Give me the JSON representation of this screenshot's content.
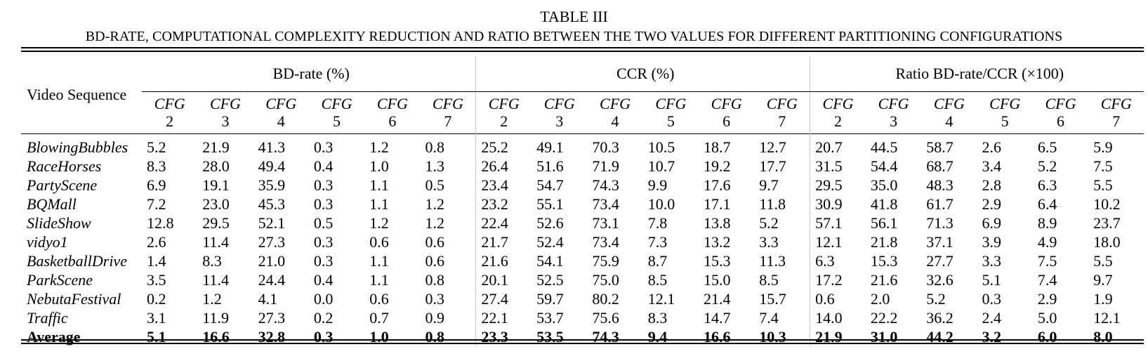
{
  "caption": {
    "label": "TABLE III",
    "title": "BD-RATE, COMPUTATIONAL COMPLEXITY REDUCTION AND RATIO BETWEEN THE TWO VALUES FOR DIFFERENT PARTITIONING CONFIGURATIONS"
  },
  "header": {
    "video_sequence": "Video Sequence",
    "groups": [
      "BD-rate (%)",
      "CCR (%)",
      "Ratio BD-rate/CCR (×100)"
    ],
    "cfg_prefix": "CFG",
    "cfg_numbers": [
      "2",
      "3",
      "4",
      "5",
      "6",
      "7"
    ]
  },
  "rows": [
    {
      "name": "BlowingBubbles",
      "values": [
        "5.2",
        "21.9",
        "41.3",
        "0.3",
        "1.2",
        "0.8",
        "25.2",
        "49.1",
        "70.3",
        "10.5",
        "18.7",
        "12.7",
        "20.7",
        "44.5",
        "58.7",
        "2.6",
        "6.5",
        "5.9"
      ]
    },
    {
      "name": "RaceHorses",
      "values": [
        "8.3",
        "28.0",
        "49.4",
        "0.4",
        "1.0",
        "1.3",
        "26.4",
        "51.6",
        "71.9",
        "10.7",
        "19.2",
        "17.7",
        "31.5",
        "54.4",
        "68.7",
        "3.4",
        "5.2",
        "7.5"
      ]
    },
    {
      "name": "PartyScene",
      "values": [
        "6.9",
        "19.1",
        "35.9",
        "0.3",
        "1.1",
        "0.5",
        "23.4",
        "54.7",
        "74.3",
        "9.9",
        "17.6",
        "9.7",
        "29.5",
        "35.0",
        "48.3",
        "2.8",
        "6.3",
        "5.5"
      ]
    },
    {
      "name": "BQMall",
      "values": [
        "7.2",
        "23.0",
        "45.3",
        "0.3",
        "1.1",
        "1.2",
        "23.2",
        "55.1",
        "73.4",
        "10.0",
        "17.1",
        "11.8",
        "30.9",
        "41.8",
        "61.7",
        "2.9",
        "6.4",
        "10.2"
      ]
    },
    {
      "name": "SlideShow",
      "values": [
        "12.8",
        "29.5",
        "52.1",
        "0.5",
        "1.2",
        "1.2",
        "22.4",
        "52.6",
        "73.1",
        "7.8",
        "13.8",
        "5.2",
        "57.1",
        "56.1",
        "71.3",
        "6.9",
        "8.9",
        "23.7"
      ]
    },
    {
      "name": "vidyo1",
      "values": [
        "2.6",
        "11.4",
        "27.3",
        "0.3",
        "0.6",
        "0.6",
        "21.7",
        "52.4",
        "73.4",
        "7.3",
        "13.2",
        "3.3",
        "12.1",
        "21.8",
        "37.1",
        "3.9",
        "4.9",
        "18.0"
      ]
    },
    {
      "name": "BasketballDrive",
      "values": [
        "1.4",
        "8.3",
        "21.0",
        "0.3",
        "1.1",
        "0.6",
        "21.6",
        "54.1",
        "75.9",
        "8.7",
        "15.3",
        "11.3",
        "6.3",
        "15.3",
        "27.7",
        "3.3",
        "7.5",
        "5.5"
      ]
    },
    {
      "name": "ParkScene",
      "values": [
        "3.5",
        "11.4",
        "24.4",
        "0.4",
        "1.1",
        "0.8",
        "20.1",
        "52.5",
        "75.0",
        "8.5",
        "15.0",
        "8.5",
        "17.2",
        "21.6",
        "32.6",
        "5.1",
        "7.4",
        "9.7"
      ]
    },
    {
      "name": "NebutaFestival",
      "values": [
        "0.2",
        "1.2",
        "4.1",
        "0.0",
        "0.6",
        "0.3",
        "27.4",
        "59.7",
        "80.2",
        "12.1",
        "21.4",
        "15.7",
        "0.6",
        "2.0",
        "5.2",
        "0.3",
        "2.9",
        "1.9"
      ]
    },
    {
      "name": "Traffic",
      "values": [
        "3.1",
        "11.9",
        "27.3",
        "0.2",
        "0.7",
        "0.9",
        "22.1",
        "53.7",
        "75.6",
        "8.3",
        "14.7",
        "7.4",
        "14.0",
        "22.2",
        "36.2",
        "2.4",
        "5.0",
        "12.1"
      ]
    }
  ],
  "average": {
    "name": "Average",
    "values": [
      "5.1",
      "16.6",
      "32.8",
      "0.3",
      "1.0",
      "0.8",
      "23.3",
      "53.5",
      "74.3",
      "9.4",
      "16.6",
      "10.3",
      "21.9",
      "31.0",
      "44.2",
      "3.2",
      "6.0",
      "8.0"
    ]
  }
}
